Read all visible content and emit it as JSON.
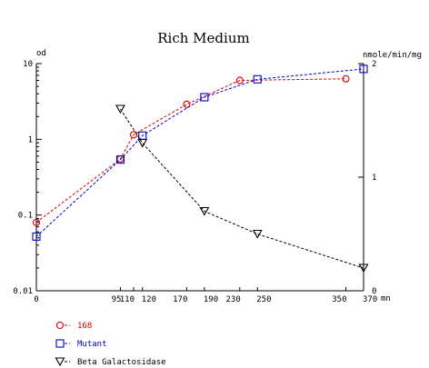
{
  "chart_data": {
    "type": "line",
    "title": "Rich Medium",
    "xlabel": "mn",
    "ylabel": "od",
    "y2label": "nmole/min/mg",
    "xlim": [
      0,
      370
    ],
    "ylim": [
      0.01,
      10
    ],
    "yscale": "log",
    "y2lim": [
      0,
      2
    ],
    "x_ticks": [
      {
        "value": 0,
        "label": "0"
      },
      {
        "value": 95,
        "label": "95"
      },
      {
        "value": 110,
        "label": "110"
      },
      {
        "value": 120,
        "label": "120"
      },
      {
        "value": 170,
        "label": "170"
      },
      {
        "value": 190,
        "label": "190"
      },
      {
        "value": 230,
        "label": "230"
      },
      {
        "value": 250,
        "label": "250"
      },
      {
        "value": 350,
        "label": "350"
      },
      {
        "value": 370,
        "label": "370"
      }
    ],
    "y_ticks": [
      {
        "value": 0.01,
        "label": "0.01"
      },
      {
        "value": 0.1,
        "label": "0.1"
      },
      {
        "value": 1,
        "label": "1"
      },
      {
        "value": 10,
        "label": "10"
      }
    ],
    "y2_ticks": [
      {
        "value": 0,
        "label": "0"
      },
      {
        "value": 1,
        "label": "1"
      },
      {
        "value": 2,
        "label": "2"
      }
    ],
    "legend_position": "bottom-left",
    "series": [
      {
        "name": "168",
        "axis": "left",
        "marker": "circle",
        "color": "#dd0000",
        "x": [
          0,
          95,
          110,
          170,
          230,
          350
        ],
        "y": [
          0.08,
          0.55,
          1.15,
          2.9,
          6.0,
          6.3
        ]
      },
      {
        "name": "Mutant",
        "axis": "left",
        "marker": "square",
        "color": "#0000cc",
        "x": [
          0,
          95,
          120,
          190,
          250,
          370
        ],
        "y": [
          0.052,
          0.54,
          1.12,
          3.6,
          6.2,
          8.5
        ]
      },
      {
        "name": "Beta Galactosidase",
        "axis": "right",
        "marker": "triangle-down",
        "color": "#000000",
        "x": [
          95,
          120,
          190,
          250,
          370
        ],
        "y": [
          1.6,
          1.3,
          0.7,
          0.5,
          0.2
        ]
      }
    ]
  }
}
